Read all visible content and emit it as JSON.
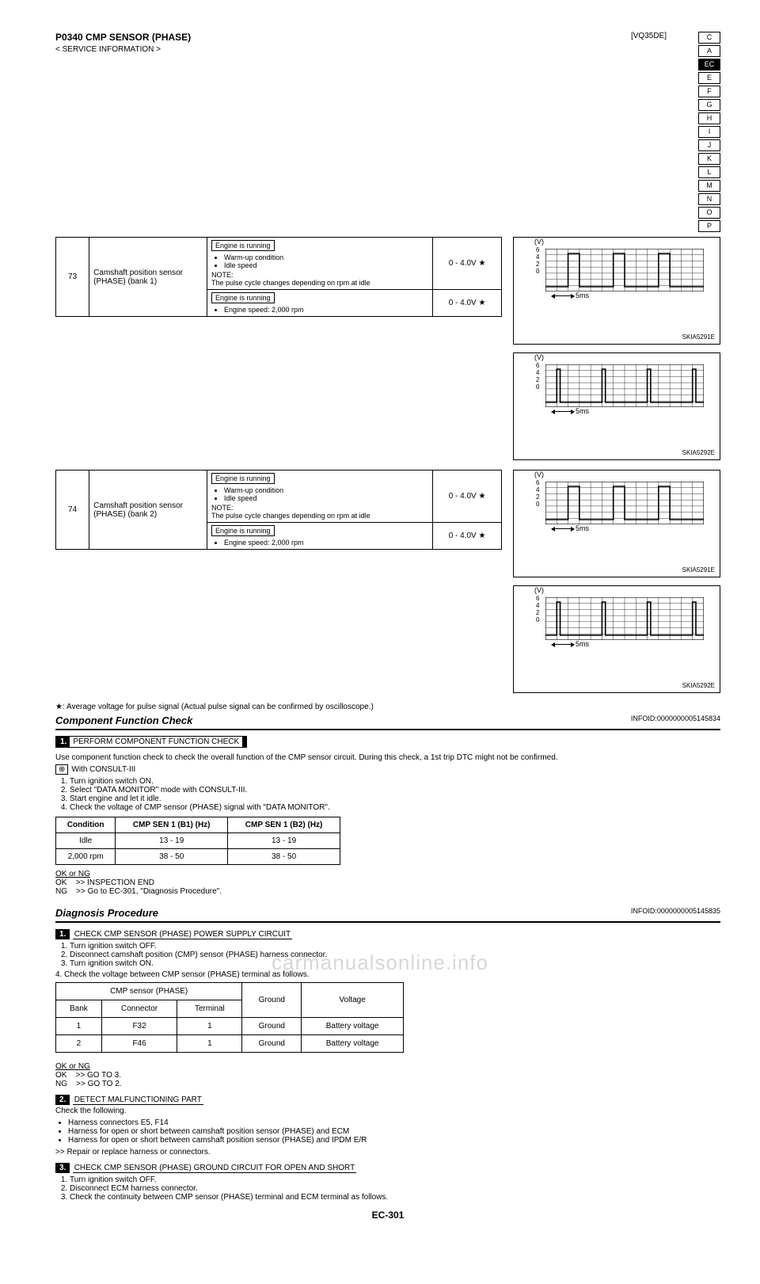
{
  "header": {
    "page_code": "P0340 CMP SENSOR (PHASE)",
    "section": "[VQ35DE]",
    "breadcrumb": "< SERVICE INFORMATION >",
    "side_tabs": [
      "C",
      "A",
      "EC",
      "E",
      "F",
      "G",
      "H",
      "I",
      "J",
      "K",
      "L",
      "M",
      "N",
      "O",
      "P"
    ],
    "active_tab_index": 2
  },
  "component": {
    "title": "Component Function Check",
    "infoid": "INFOID:0000000005145834",
    "step_label": "1.",
    "step_title": "PERFORM COMPONENT FUNCTION CHECK",
    "note_top": "Use component function check to check the overall function of the CMP sensor circuit. During this check, a 1st trip DTC might not be confirmed.",
    "steps": [
      "Turn ignition switch ON.",
      "Select \"DATA MONITOR\" mode with CONSULT-III.",
      "Start engine and let it idle.",
      "Check the voltage of CMP sensor (PHASE) signal with \"DATA MONITOR\"."
    ],
    "table": {
      "headers": [
        "Condition",
        "CMP SEN 1 (B1) (Hz)",
        "CMP SEN 1 (B2) (Hz)"
      ],
      "rows": [
        [
          "Idle",
          "13 - 19",
          "13 - 19"
        ],
        [
          "2,000 rpm",
          "38 - 50",
          "38 - 50"
        ]
      ]
    },
    "ask_ok": ">> INSPECTION END",
    "ask_ng": ">> Go to EC-301, \"Diagnosis Procedure\"."
  },
  "diagnosis": {
    "title": "Diagnosis Procedure",
    "infoid": "INFOID:0000000005145835",
    "step_label": "1.",
    "step_title": "CHECK CMP SENSOR (PHASE) POWER SUPPLY CIRCUIT",
    "substeps": [
      "Turn ignition switch OFF.",
      "Disconnect camshaft position (CMP) sensor (PHASE) harness connector.",
      "Turn ignition switch ON."
    ],
    "caption": "4.   Check the voltage between CMP sensor (PHASE) terminal as follows.",
    "pin_headers": {
      "group1": "CMP sensor (PHASE)",
      "sub1": "Bank",
      "sub2": "Connector",
      "sub3": "Terminal",
      "col2": "Ground",
      "col3": "Voltage"
    },
    "pin_rows": [
      [
        "1",
        "F32",
        "1",
        "Ground",
        "Battery voltage"
      ],
      [
        "2",
        "F46",
        "1",
        "Ground",
        "Battery voltage"
      ]
    ],
    "ask_ok": ">> GO TO 3.",
    "ask_ng": ">> GO TO 2.",
    "step2_label": "2.",
    "step2_title": "DETECT MALFUNCTIONING PART",
    "step2_text": "Check the following.",
    "step2_bullets": [
      "Harness connectors E5, F14",
      "Harness for open or short between camshaft position sensor (PHASE) and ECM",
      "Harness for open or short between camshaft position sensor (PHASE) and IPDM E/R"
    ],
    "step2_repair": ">> Repair or replace harness or connectors.",
    "step3_label": "3.",
    "step3_title": "CHECK CMP SENSOR (PHASE) GROUND CIRCUIT FOR OPEN AND SHORT",
    "step3_steps": [
      "Turn ignition switch OFF.",
      "Disconnect ECM harness connector.",
      "Check the continuity between CMP sensor (PHASE) terminal and ECM terminal as follows."
    ]
  },
  "oscilloscopes": [
    {
      "id": "SKIA5291E",
      "yticks": [
        "6",
        "4",
        "2",
        "0"
      ],
      "vlabel": "(V)",
      "timebase": "5ms",
      "type": "wide",
      "bg": "#ffffff",
      "grid": "#000000"
    },
    {
      "id": "SKIA5292E",
      "yticks": [
        "6",
        "4",
        "2",
        "0"
      ],
      "vlabel": "(V)",
      "timebase": "5ms",
      "type": "narrow",
      "bg": "#ffffff",
      "grid": "#000000"
    },
    {
      "id": "SKIA5291E",
      "yticks": [
        "6",
        "4",
        "2",
        "0"
      ],
      "vlabel": "(V)",
      "timebase": "5ms",
      "type": "wide",
      "bg": "#ffffff",
      "grid": "#000000"
    },
    {
      "id": "SKIA5292E",
      "yticks": [
        "6",
        "4",
        "2",
        "0"
      ],
      "vlabel": "(V)",
      "timebase": "5ms",
      "type": "narrow",
      "bg": "#ffffff",
      "grid": "#000000"
    }
  ],
  "pin_table2": {
    "row1": {
      "terminal_a": "73",
      "signal_a": "Camshaft position sensor (PHASE) (bank 1)",
      "engine_a": "Engine is running",
      "cond_a_top": "Warm-up condition",
      "cond_a_bot": "Idle speed",
      "note_a": "NOTE:\nThe pulse cycle changes depending on rpm at idle",
      "volt_a": "0 - 4.0V ★",
      "engine_b": "Engine is running",
      "cond_b": "Engine speed: 2,000 rpm",
      "volt_b": "0 - 4.0V ★"
    },
    "row2": {
      "terminal_a": "74",
      "signal_a": "Camshaft position sensor (PHASE) (bank 2)",
      "engine_a": "Engine is running",
      "cond_a_top": "Warm-up condition",
      "cond_a_bot": "Idle speed",
      "note_a": "NOTE:\nThe pulse cycle changes depending on rpm at idle",
      "volt_a": "0 - 4.0V ★",
      "engine_b": "Engine is running",
      "cond_b": "Engine speed: 2,000 rpm",
      "volt_b": "0 - 4.0V ★"
    }
  },
  "footer": {
    "bottom_page": "EC-301",
    "watermark": "carmanualsonline.info"
  },
  "colors": {
    "text": "#000000",
    "bg": "#ffffff",
    "tab_active_bg": "#000000",
    "tab_active_fg": "#ffffff"
  }
}
